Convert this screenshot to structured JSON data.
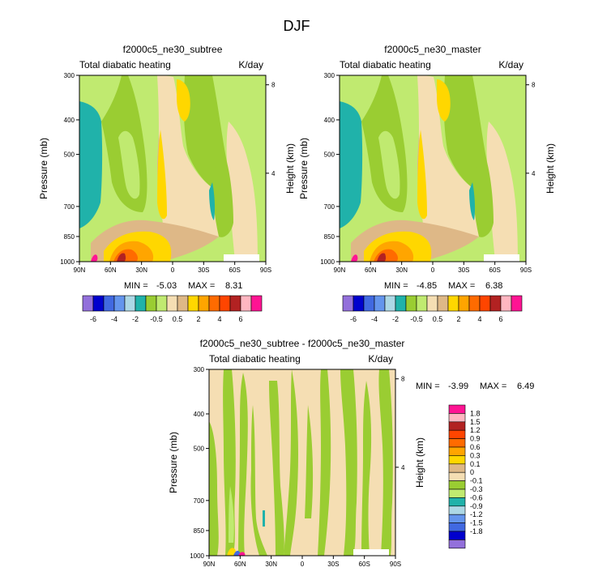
{
  "figure": {
    "season": "DJF"
  },
  "chart_data": [
    {
      "type": "heatmap",
      "title": "f2000c5_ne30_subtree",
      "left_label": "Total diabatic heating",
      "right_label": "K/day",
      "ylabel": "Pressure (mb)",
      "ylabel_right": "Height (km)",
      "pressure_ticks": [
        "300",
        "400",
        "500",
        "700",
        "850",
        "1000"
      ],
      "height_ticks": [
        "8",
        "4"
      ],
      "lat_ticks": [
        "90N",
        "60N",
        "30N",
        "0",
        "30S",
        "60S",
        "90S"
      ],
      "min_label": "MIN =",
      "min_value": "-5.03",
      "max_label": "MAX =",
      "max_value": "8.31"
    },
    {
      "type": "heatmap",
      "title": "f2000c5_ne30_master",
      "left_label": "Total diabatic heating",
      "right_label": "K/day",
      "ylabel": "Pressure (mb)",
      "ylabel_right": "Height (km)",
      "pressure_ticks": [
        "300",
        "400",
        "500",
        "700",
        "850",
        "1000"
      ],
      "height_ticks": [
        "8",
        "4"
      ],
      "lat_ticks": [
        "90N",
        "60N",
        "30N",
        "0",
        "30S",
        "60S",
        "90S"
      ],
      "min_label": "MIN =",
      "min_value": "-4.85",
      "max_label": "MAX =",
      "max_value": "6.38"
    },
    {
      "type": "heatmap",
      "title": "f2000c5_ne30_subtree - f2000c5_ne30_master",
      "left_label": "Total diabatic heating",
      "right_label": "K/day",
      "ylabel": "Pressure (mb)",
      "ylabel_right": "Height (km)",
      "pressure_ticks": [
        "300",
        "400",
        "500",
        "700",
        "850",
        "1000"
      ],
      "height_ticks": [
        "8",
        "4"
      ],
      "lat_ticks": [
        "90N",
        "60N",
        "30N",
        "0",
        "30S",
        "60S",
        "90S"
      ],
      "min_label": "MIN =",
      "min_value": "-3.99",
      "max_label": "MAX =",
      "max_value": "6.49"
    }
  ],
  "colorbar_main": {
    "colors": [
      "#9370db",
      "#0000cd",
      "#4169e1",
      "#6495ed",
      "#add8e6",
      "#20b2aa",
      "#9acd32",
      "#c0ea70",
      "#f5deb3",
      "#deb887",
      "#ffd700",
      "#ffa500",
      "#ff6b00",
      "#ff4500",
      "#b22222",
      "#ffb6c1",
      "#ff1493"
    ],
    "labels": [
      "-6",
      "-4",
      "-2",
      "-0.5",
      "0.5",
      "2",
      "4",
      "6"
    ]
  },
  "colorbar_diff": {
    "colors": [
      "#9370db",
      "#0000cd",
      "#4169e1",
      "#6495ed",
      "#add8e6",
      "#20b2aa",
      "#c0ea70",
      "#9acd32",
      "#f5deb3",
      "#deb887",
      "#ffd700",
      "#ffa500",
      "#ff6b00",
      "#ff4500",
      "#b22222",
      "#ffb6c1",
      "#ff1493"
    ],
    "labels": [
      "-1.8",
      "-1.5",
      "-1.2",
      "-0.9",
      "-0.6",
      "-0.3",
      "-0.1",
      "0",
      "0.1",
      "0.3",
      "0.6",
      "0.9",
      "1.2",
      "1.5",
      "1.8"
    ]
  }
}
